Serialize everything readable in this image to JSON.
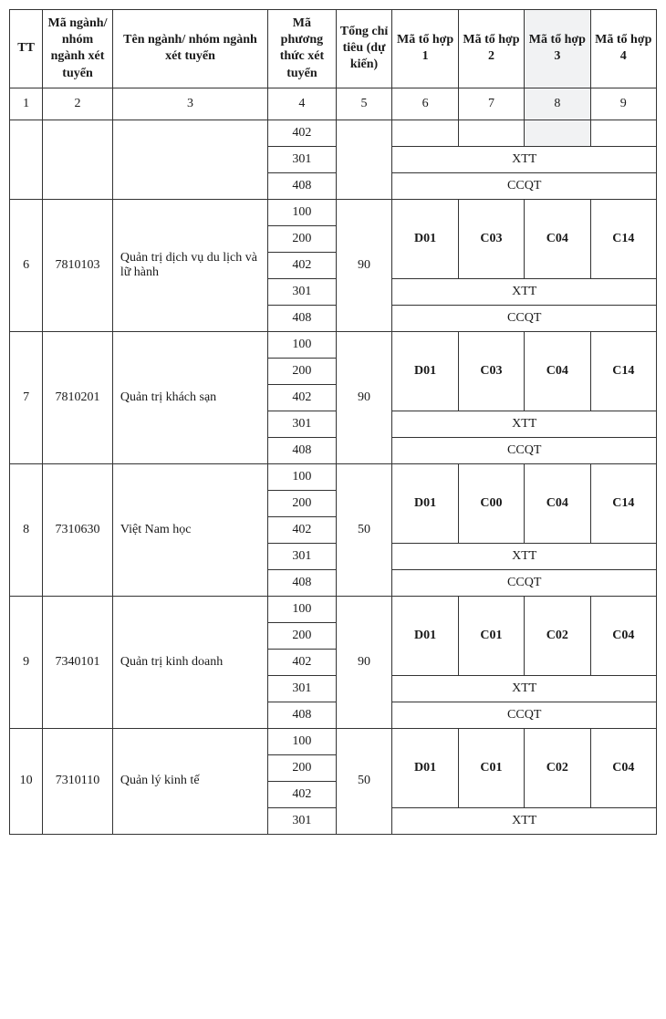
{
  "table": {
    "border_color": "#333333",
    "background_color": "#ffffff",
    "shade_color": "#f1f2f3",
    "font_family": "Times New Roman",
    "font_size_header": 14,
    "font_size_body": 14,
    "headers": {
      "tt": "TT",
      "ma_nganh": "Mã ngành/ nhóm ngành xét tuyển",
      "ten_nganh": "Tên ngành/ nhóm ngành xét tuyển",
      "ma_phuong_thuc": "Mã phương thức xét tuyển",
      "tong_chi_tieu": "Tổng chỉ tiêu (dự kiến)",
      "ma_to_hop_1": "Mã tổ hợp 1",
      "ma_to_hop_2": "Mã tổ hợp 2",
      "ma_to_hop_3": "Mã tổ hợp 3",
      "ma_to_hop_4": "Mã tổ hợp 4"
    },
    "col_numbers": [
      "1",
      "2",
      "3",
      "4",
      "5",
      "6",
      "7",
      "8",
      "9"
    ],
    "methods": [
      "100",
      "200",
      "402",
      "301",
      "408"
    ],
    "partial_top": {
      "methods": [
        "402",
        "301",
        "408"
      ],
      "xtt": "XTT",
      "ccqt": "CCQT"
    },
    "groups": [
      {
        "tt": "6",
        "code": "7810103",
        "name": "Quản trị dịch vụ du lịch và lữ hành",
        "quota": "90",
        "combos": [
          "D01",
          "C03",
          "C04",
          "C14"
        ],
        "xtt": "XTT",
        "ccqt": "CCQT"
      },
      {
        "tt": "7",
        "code": "7810201",
        "name": "Quản trị khách sạn",
        "quota": "90",
        "combos": [
          "D01",
          "C03",
          "C04",
          "C14"
        ],
        "xtt": "XTT",
        "ccqt": "CCQT"
      },
      {
        "tt": "8",
        "code": "7310630",
        "name": "Việt Nam học",
        "quota": "50",
        "combos": [
          "D01",
          "C00",
          "C04",
          "C14"
        ],
        "xtt": "XTT",
        "ccqt": "CCQT"
      },
      {
        "tt": "9",
        "code": "7340101",
        "name": "Quản trị kinh doanh",
        "quota": "90",
        "combos": [
          "D01",
          "C01",
          "C02",
          "C04"
        ],
        "xtt": "XTT",
        "ccqt": "CCQT"
      }
    ],
    "partial_bottom": {
      "tt": "10",
      "code": "7310110",
      "name": "Quản lý kinh tế",
      "quota": "50",
      "methods": [
        "100",
        "200",
        "402",
        "301"
      ],
      "combos": [
        "D01",
        "C01",
        "C02",
        "C04"
      ],
      "xtt": "XTT"
    }
  }
}
